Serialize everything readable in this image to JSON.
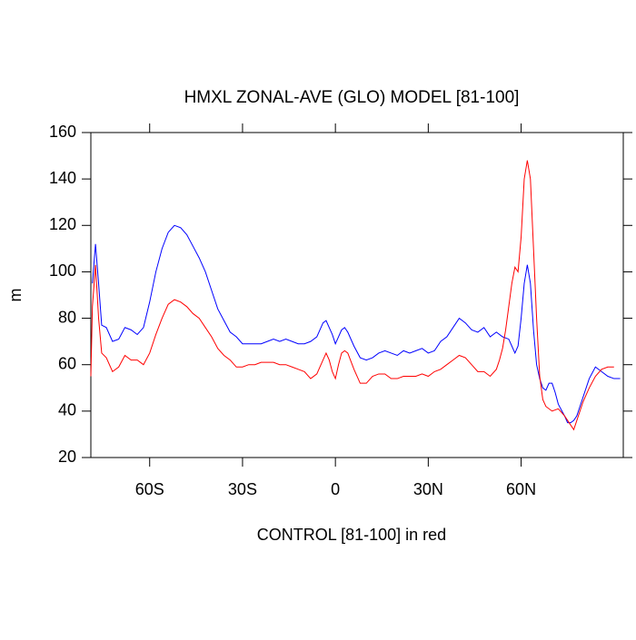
{
  "chart_data": {
    "type": "line",
    "title": "HMXL ZONAL-AVE (GLO) MODEL [81-100]",
    "ylabel": "m",
    "xlabel": "CONTROL [81-100] in red",
    "xlim": [
      -79,
      93
    ],
    "ylim": [
      20,
      160
    ],
    "xticks": [
      {
        "value": -60,
        "label": "60S"
      },
      {
        "value": -30,
        "label": "30S"
      },
      0,
      {
        "value": 30,
        "label": "30N"
      },
      {
        "value": 60,
        "label": "60N"
      }
    ],
    "yticks": [
      20,
      40,
      60,
      80,
      100,
      120,
      140,
      160
    ],
    "grid": false,
    "series": [
      {
        "color": "#0000ff",
        "x": [
          -78.5,
          -77.5,
          -76.5,
          -75.5,
          -74,
          -72,
          -70,
          -68,
          -66,
          -64,
          -62,
          -60,
          -58,
          -56,
          -54,
          -52,
          -50,
          -48,
          -46,
          -44,
          -42,
          -40,
          -38,
          -36,
          -34,
          -32,
          -30,
          -28,
          -26,
          -24,
          -22,
          -20,
          -18,
          -16,
          -14,
          -12,
          -10,
          -8,
          -6,
          -4,
          -3,
          -2,
          -1,
          0,
          1,
          2,
          3,
          4,
          6,
          8,
          10,
          12,
          14,
          16,
          18,
          20,
          22,
          24,
          26,
          28,
          30,
          32,
          34,
          36,
          38,
          40,
          42,
          44,
          46,
          48,
          50,
          52,
          54,
          56,
          57,
          58,
          59,
          60,
          61,
          62,
          63,
          64,
          65,
          66,
          67,
          68,
          69,
          70,
          71,
          72,
          74,
          75,
          76,
          77,
          78,
          80,
          82,
          84,
          86,
          88,
          90,
          92
        ],
        "values": [
          95,
          112,
          95,
          77,
          76,
          70,
          71,
          76,
          75,
          73,
          76,
          87,
          100,
          110,
          117,
          120,
          119,
          116,
          111,
          106,
          100,
          92,
          84,
          79,
          74,
          72,
          69,
          69,
          69,
          69,
          70,
          71,
          70,
          71,
          70,
          69,
          69,
          70,
          72,
          78,
          79,
          76,
          73,
          69,
          72,
          75,
          76,
          74,
          68,
          63,
          62,
          63,
          65,
          66,
          65,
          64,
          66,
          65,
          66,
          67,
          65,
          66,
          70,
          72,
          76,
          80,
          78,
          75,
          74,
          76,
          72,
          74,
          72,
          71,
          68,
          65,
          68,
          80,
          95,
          103,
          95,
          75,
          60,
          54,
          50,
          49,
          52,
          52,
          48,
          43,
          38,
          35,
          35,
          36,
          38,
          46,
          54,
          59,
          57,
          55,
          54,
          54
        ]
      },
      {
        "color": "#ff0000",
        "x": [
          -79,
          -78.5,
          -77.5,
          -76.5,
          -75.5,
          -74,
          -72,
          -70,
          -68,
          -66,
          -64,
          -62,
          -60,
          -58,
          -56,
          -54,
          -52,
          -50,
          -48,
          -46,
          -44,
          -42,
          -40,
          -38,
          -36,
          -34,
          -32,
          -30,
          -28,
          -26,
          -24,
          -22,
          -20,
          -18,
          -16,
          -14,
          -12,
          -10,
          -8,
          -6,
          -4,
          -3,
          -2,
          -1,
          0,
          1,
          2,
          3,
          4,
          6,
          8,
          10,
          12,
          14,
          16,
          18,
          20,
          22,
          24,
          26,
          28,
          30,
          32,
          34,
          36,
          38,
          40,
          42,
          44,
          46,
          48,
          50,
          52,
          53,
          54,
          55,
          56,
          57,
          58,
          59,
          60,
          61,
          62,
          63,
          64,
          65,
          66,
          67,
          68,
          70,
          72,
          74,
          76,
          77,
          78,
          80,
          82,
          84,
          86,
          88,
          90
        ],
        "values": [
          55,
          85,
          103,
          80,
          65,
          63,
          57,
          59,
          64,
          62,
          62,
          60,
          65,
          73,
          80,
          86,
          88,
          87,
          85,
          82,
          80,
          76,
          72,
          67,
          64,
          62,
          59,
          59,
          60,
          60,
          61,
          61,
          61,
          60,
          60,
          59,
          58,
          57,
          54,
          56,
          62,
          65,
          62,
          57,
          54,
          60,
          65,
          66,
          65,
          58,
          52,
          52,
          55,
          56,
          56,
          54,
          54,
          55,
          55,
          55,
          56,
          55,
          57,
          58,
          60,
          62,
          64,
          63,
          60,
          57,
          57,
          55,
          58,
          62,
          67,
          75,
          85,
          95,
          102,
          100,
          115,
          140,
          148,
          140,
          110,
          80,
          55,
          45,
          42,
          40,
          41,
          38,
          34,
          32,
          36,
          44,
          50,
          55,
          58,
          59,
          59
        ]
      }
    ]
  }
}
